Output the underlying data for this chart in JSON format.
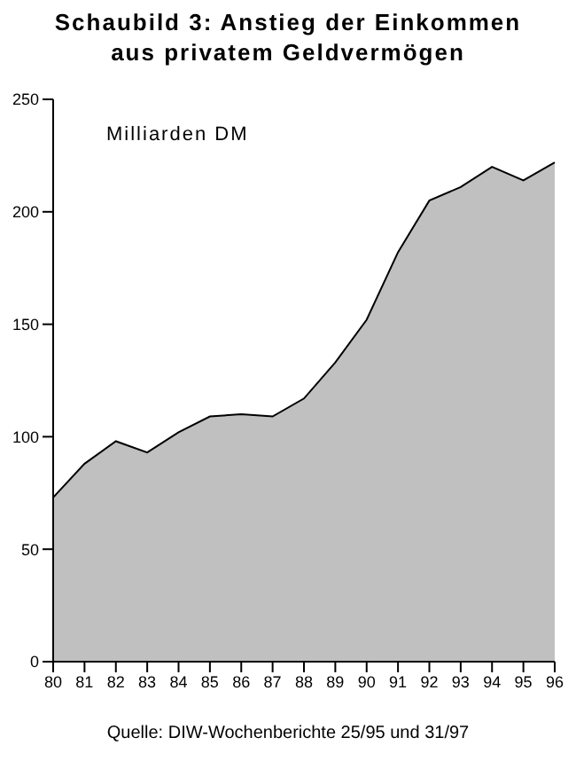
{
  "chart_data": {
    "type": "area",
    "title": "Schaubild 3: Anstieg der Einkommen aus privatem Geldvermögen",
    "categories": [
      "80",
      "81",
      "82",
      "83",
      "84",
      "85",
      "86",
      "87",
      "88",
      "89",
      "90",
      "91",
      "92",
      "93",
      "94",
      "95",
      "96"
    ],
    "values": [
      73,
      88,
      98,
      93,
      102,
      109,
      110,
      109,
      117,
      133,
      152,
      182,
      205,
      211,
      220,
      214,
      222
    ],
    "color": "#c0c0c0",
    "ylim": [
      0,
      250
    ],
    "yticks": [
      0,
      50,
      100,
      150,
      200,
      250
    ],
    "annotations": [
      "Milliarden DM",
      "Quelle: DIW-Wochenberichte 25/95 und 31/97"
    ]
  }
}
